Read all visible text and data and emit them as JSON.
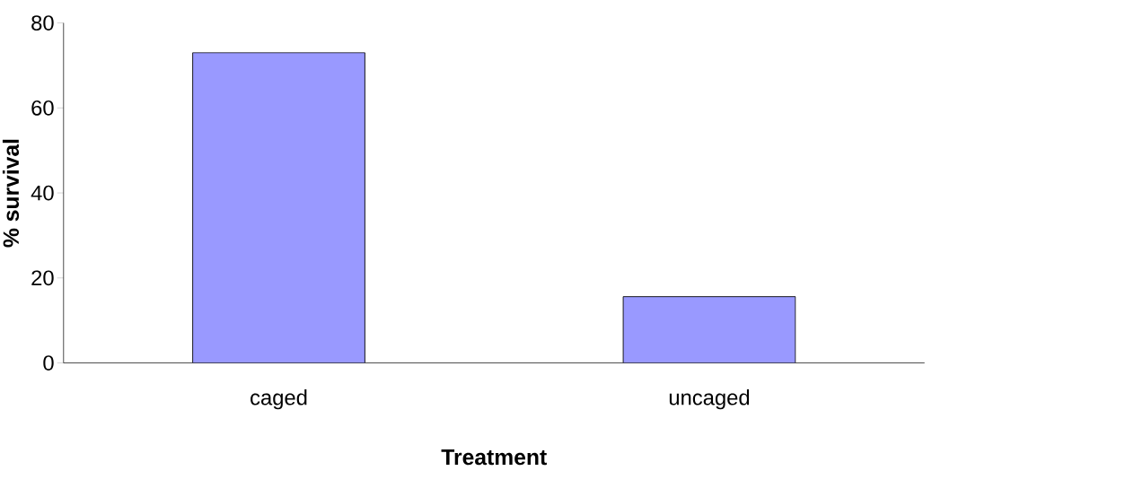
{
  "chart_data": {
    "type": "bar",
    "xlabel": "Treatment",
    "ylabel": "% survival",
    "categories": [
      "caged",
      "uncaged"
    ],
    "values": [
      73,
      15.6
    ],
    "color": "#9999ff",
    "ylim": [
      0,
      80
    ],
    "yticks": [
      0,
      20,
      40,
      60,
      80
    ]
  }
}
